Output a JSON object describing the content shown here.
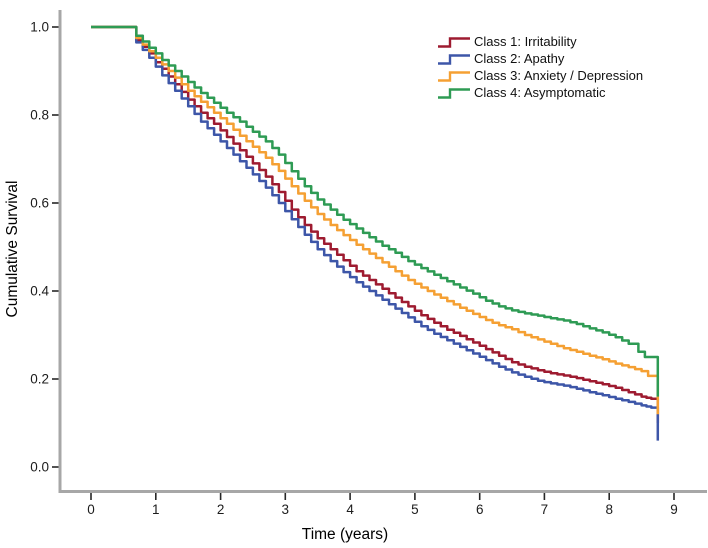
{
  "figure": {
    "background": "#ffffff",
    "axis_color": "#a7a7a7",
    "tick_color": "#262626",
    "text_color": "#1c1c1c"
  },
  "chart_data": {
    "type": "line",
    "subtype": "kaplan-meier-step-curves",
    "title": "",
    "xlabel": "Time (years)",
    "ylabel": "Cumulative Survival",
    "xlim": [
      0,
      9
    ],
    "ylim": [
      0.0,
      1.0
    ],
    "x_ticks": [
      "0",
      "1",
      "2",
      "3",
      "4",
      "5",
      "6",
      "7",
      "8",
      "9"
    ],
    "y_ticks": [
      "0.0",
      "0.2",
      "0.4",
      "0.6",
      "0.8",
      "1.0"
    ],
    "grid": false,
    "legend_position": "top-right-inside",
    "series": [
      {
        "name": "Class 1: Irritability",
        "color": "#9e1b30",
        "points": [
          [
            0,
            1.0
          ],
          [
            0.55,
            1.0
          ],
          [
            0.7,
            0.97
          ],
          [
            0.8,
            0.955
          ],
          [
            0.9,
            0.94
          ],
          [
            1.0,
            0.92
          ],
          [
            1.1,
            0.905
          ],
          [
            1.3,
            0.87
          ],
          [
            1.5,
            0.835
          ],
          [
            1.7,
            0.805
          ],
          [
            1.9,
            0.78
          ],
          [
            2.1,
            0.75
          ],
          [
            2.3,
            0.72
          ],
          [
            2.5,
            0.69
          ],
          [
            2.7,
            0.66
          ],
          [
            2.9,
            0.625
          ],
          [
            3.1,
            0.585
          ],
          [
            3.3,
            0.55
          ],
          [
            3.5,
            0.52
          ],
          [
            3.7,
            0.495
          ],
          [
            3.9,
            0.47
          ],
          [
            4.1,
            0.445
          ],
          [
            4.3,
            0.425
          ],
          [
            4.5,
            0.405
          ],
          [
            4.7,
            0.385
          ],
          [
            4.9,
            0.365
          ],
          [
            5.1,
            0.345
          ],
          [
            5.3,
            0.328
          ],
          [
            5.5,
            0.312
          ],
          [
            5.7,
            0.298
          ],
          [
            5.9,
            0.283
          ],
          [
            6.1,
            0.268
          ],
          [
            6.3,
            0.253
          ],
          [
            6.5,
            0.238
          ],
          [
            6.7,
            0.228
          ],
          [
            6.9,
            0.22
          ],
          [
            7.1,
            0.213
          ],
          [
            7.3,
            0.208
          ],
          [
            7.5,
            0.202
          ],
          [
            7.7,
            0.195
          ],
          [
            7.9,
            0.188
          ],
          [
            8.1,
            0.18
          ],
          [
            8.3,
            0.17
          ],
          [
            8.5,
            0.16
          ],
          [
            8.65,
            0.155
          ],
          [
            8.72,
            0.155
          ],
          [
            8.75,
            0.1
          ]
        ]
      },
      {
        "name": "Class 2: Apathy",
        "color": "#3d56a8",
        "points": [
          [
            0,
            1.0
          ],
          [
            0.55,
            1.0
          ],
          [
            0.7,
            0.965
          ],
          [
            0.8,
            0.948
          ],
          [
            0.9,
            0.93
          ],
          [
            1.0,
            0.91
          ],
          [
            1.1,
            0.89
          ],
          [
            1.3,
            0.855
          ],
          [
            1.5,
            0.82
          ],
          [
            1.7,
            0.785
          ],
          [
            1.9,
            0.755
          ],
          [
            2.1,
            0.725
          ],
          [
            2.3,
            0.695
          ],
          [
            2.5,
            0.665
          ],
          [
            2.7,
            0.635
          ],
          [
            2.9,
            0.6
          ],
          [
            3.1,
            0.563
          ],
          [
            3.3,
            0.528
          ],
          [
            3.5,
            0.495
          ],
          [
            3.7,
            0.468
          ],
          [
            3.9,
            0.443
          ],
          [
            4.1,
            0.42
          ],
          [
            4.3,
            0.4
          ],
          [
            4.5,
            0.38
          ],
          [
            4.7,
            0.36
          ],
          [
            4.9,
            0.34
          ],
          [
            5.1,
            0.32
          ],
          [
            5.3,
            0.303
          ],
          [
            5.5,
            0.288
          ],
          [
            5.7,
            0.273
          ],
          [
            5.9,
            0.258
          ],
          [
            6.1,
            0.243
          ],
          [
            6.3,
            0.228
          ],
          [
            6.5,
            0.215
          ],
          [
            6.7,
            0.205
          ],
          [
            6.9,
            0.196
          ],
          [
            7.1,
            0.19
          ],
          [
            7.3,
            0.185
          ],
          [
            7.5,
            0.178
          ],
          [
            7.7,
            0.17
          ],
          [
            7.9,
            0.163
          ],
          [
            8.1,
            0.155
          ],
          [
            8.3,
            0.148
          ],
          [
            8.5,
            0.14
          ],
          [
            8.65,
            0.135
          ],
          [
            8.72,
            0.135
          ],
          [
            8.75,
            0.06
          ]
        ]
      },
      {
        "name": "Class 3: Anxiety / Depression",
        "color": "#f5a033",
        "points": [
          [
            0,
            1.0
          ],
          [
            0.55,
            1.0
          ],
          [
            0.7,
            0.975
          ],
          [
            0.8,
            0.96
          ],
          [
            0.9,
            0.945
          ],
          [
            1.0,
            0.93
          ],
          [
            1.1,
            0.915
          ],
          [
            1.3,
            0.885
          ],
          [
            1.5,
            0.855
          ],
          [
            1.7,
            0.83
          ],
          [
            1.9,
            0.805
          ],
          [
            2.1,
            0.78
          ],
          [
            2.3,
            0.753
          ],
          [
            2.5,
            0.728
          ],
          [
            2.7,
            0.703
          ],
          [
            2.9,
            0.673
          ],
          [
            3.1,
            0.638
          ],
          [
            3.3,
            0.605
          ],
          [
            3.5,
            0.575
          ],
          [
            3.7,
            0.55
          ],
          [
            3.9,
            0.527
          ],
          [
            4.1,
            0.505
          ],
          [
            4.3,
            0.485
          ],
          [
            4.5,
            0.465
          ],
          [
            4.7,
            0.445
          ],
          [
            4.9,
            0.425
          ],
          [
            5.1,
            0.408
          ],
          [
            5.3,
            0.392
          ],
          [
            5.5,
            0.377
          ],
          [
            5.7,
            0.362
          ],
          [
            5.9,
            0.348
          ],
          [
            6.1,
            0.334
          ],
          [
            6.3,
            0.322
          ],
          [
            6.5,
            0.313
          ],
          [
            6.7,
            0.3
          ],
          [
            6.9,
            0.29
          ],
          [
            7.1,
            0.28
          ],
          [
            7.3,
            0.27
          ],
          [
            7.5,
            0.262
          ],
          [
            7.7,
            0.253
          ],
          [
            7.9,
            0.245
          ],
          [
            8.1,
            0.235
          ],
          [
            8.3,
            0.227
          ],
          [
            8.5,
            0.218
          ],
          [
            8.6,
            0.207
          ],
          [
            8.72,
            0.207
          ],
          [
            8.75,
            0.12
          ]
        ]
      },
      {
        "name": "Class 4: Asymptomatic",
        "color": "#2e9b54",
        "points": [
          [
            0,
            1.0
          ],
          [
            0.55,
            1.0
          ],
          [
            0.7,
            0.98
          ],
          [
            0.8,
            0.967
          ],
          [
            0.9,
            0.953
          ],
          [
            1.0,
            0.94
          ],
          [
            1.1,
            0.925
          ],
          [
            1.3,
            0.9
          ],
          [
            1.5,
            0.875
          ],
          [
            1.7,
            0.85
          ],
          [
            1.9,
            0.828
          ],
          [
            2.1,
            0.805
          ],
          [
            2.3,
            0.785
          ],
          [
            2.5,
            0.762
          ],
          [
            2.7,
            0.74
          ],
          [
            2.9,
            0.71
          ],
          [
            3.1,
            0.672
          ],
          [
            3.3,
            0.638
          ],
          [
            3.5,
            0.608
          ],
          [
            3.7,
            0.585
          ],
          [
            3.9,
            0.562
          ],
          [
            4.1,
            0.542
          ],
          [
            4.3,
            0.522
          ],
          [
            4.5,
            0.503
          ],
          [
            4.7,
            0.487
          ],
          [
            4.9,
            0.468
          ],
          [
            5.1,
            0.452
          ],
          [
            5.3,
            0.437
          ],
          [
            5.5,
            0.422
          ],
          [
            5.7,
            0.408
          ],
          [
            5.9,
            0.394
          ],
          [
            6.1,
            0.378
          ],
          [
            6.3,
            0.365
          ],
          [
            6.5,
            0.356
          ],
          [
            6.7,
            0.349
          ],
          [
            6.9,
            0.344
          ],
          [
            7.1,
            0.338
          ],
          [
            7.3,
            0.333
          ],
          [
            7.5,
            0.325
          ],
          [
            7.7,
            0.315
          ],
          [
            7.9,
            0.306
          ],
          [
            8.1,
            0.295
          ],
          [
            8.3,
            0.28
          ],
          [
            8.45,
            0.262
          ],
          [
            8.55,
            0.25
          ],
          [
            8.72,
            0.25
          ],
          [
            8.75,
            0.16
          ]
        ]
      }
    ]
  }
}
